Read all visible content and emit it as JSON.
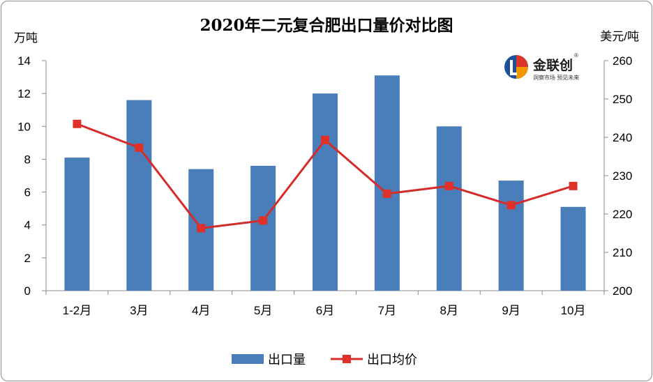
{
  "logo": {
    "name": "金联创",
    "mark": "®",
    "tagline": "洞察市场 预见未来",
    "colors": {
      "blue": "#1f4e9c",
      "red": "#d9352b",
      "orange": "#f39800"
    }
  },
  "colors": {
    "bar": "#4a7ebb",
    "line": "#d62b2b",
    "marker": "#e0302a",
    "axis": "#8c8c8c"
  },
  "chart_data": {
    "type": "bar+line",
    "title": "2020年二元复合肥出口量价对比图",
    "categories": [
      "1-2月",
      "3月",
      "4月",
      "5月",
      "6月",
      "7月",
      "8月",
      "9月",
      "10月"
    ],
    "y_left": {
      "label": "万吨",
      "min": 0,
      "max": 14,
      "ticks": [
        0,
        2,
        4,
        6,
        8,
        10,
        12,
        14
      ]
    },
    "y_right": {
      "label": "美元/吨",
      "min": 200,
      "max": 260,
      "ticks": [
        200,
        210,
        220,
        230,
        240,
        250,
        260
      ]
    },
    "series": [
      {
        "name": "出口量",
        "type": "bar",
        "axis": "left",
        "values": [
          8.1,
          11.6,
          7.4,
          7.6,
          12.0,
          13.1,
          10.0,
          6.7,
          5.1
        ]
      },
      {
        "name": "出口均价",
        "type": "line",
        "axis": "right",
        "values": [
          243.5,
          237.3,
          216.3,
          218.3,
          239.3,
          225.3,
          227.3,
          222.3,
          227.3
        ]
      }
    ],
    "grid": false,
    "legend": "bottom"
  }
}
